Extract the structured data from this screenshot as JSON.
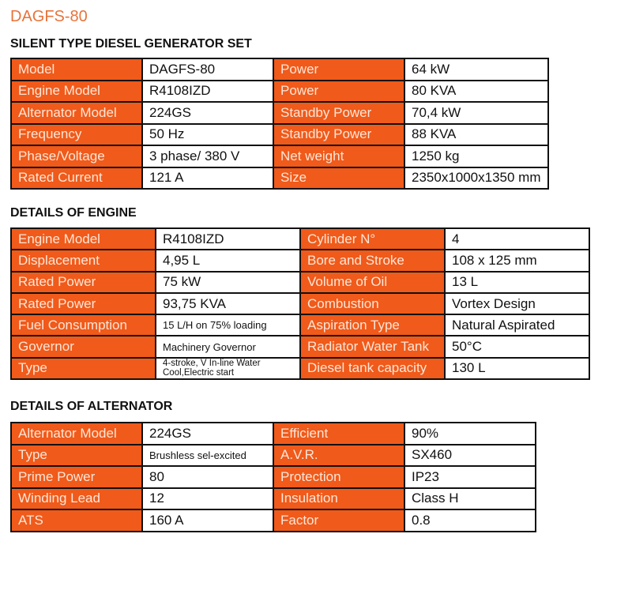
{
  "title": "DAGFS-80",
  "sections": [
    {
      "heading": "SILENT TYPE DIESEL GENERATOR SET",
      "rows": [
        [
          "Model",
          "DAGFS-80",
          "Power",
          "64 kW"
        ],
        [
          "Engine Model",
          "R4108IZD",
          "Power",
          "80 KVA"
        ],
        [
          "Alternator Model",
          "224GS",
          "Standby Power",
          "70,4 kW"
        ],
        [
          "Frequency",
          "50 Hz",
          "Standby Power",
          "88 KVA"
        ],
        [
          "Phase/Voltage",
          "3 phase/ 380 V",
          "Net weight",
          "1250 kg"
        ],
        [
          "Rated Current",
          "121 A",
          "Size",
          "2350x1000x1350 mm"
        ]
      ]
    },
    {
      "heading": "DETAILS OF ENGINE",
      "rows": [
        [
          "Engine Model",
          "R4108IZD",
          "Cylinder N°",
          "4"
        ],
        [
          "Displacement",
          "4,95 L",
          "Bore and Stroke",
          "108 x 125 mm"
        ],
        [
          "Rated Power",
          "75 kW",
          "Volume of Oil",
          "13 L"
        ],
        [
          "Rated Power",
          "93,75 KVA",
          "Combustion",
          "Vortex Design"
        ],
        [
          "Fuel Consumption",
          "15 L/H on 75% loading",
          "Aspiration Type",
          "Natural Aspirated"
        ],
        [
          "Governor",
          "Machinery Governor",
          "Radiator Water Tank",
          "50°C"
        ],
        [
          "Type",
          "4-stroke, V In-line Water Cool,Electric start",
          "Diesel tank capacity",
          "130 L"
        ]
      ]
    },
    {
      "heading": "DETAILS OF ALTERNATOR",
      "rows": [
        [
          "Alternator Model",
          "224GS",
          "Efficient",
          "90%"
        ],
        [
          "Type",
          "Brushless sel-excited",
          "A.V.R.",
          "SX460"
        ],
        [
          "Prime Power",
          "80",
          "Protection",
          "IP23"
        ],
        [
          "Winding Lead",
          "12",
          "Insulation",
          "Class H"
        ],
        [
          "ATS",
          "160 A",
          "Factor",
          "0.8"
        ]
      ]
    }
  ],
  "colors": {
    "header_cell": "#f05a1a",
    "title": "#e8733a"
  }
}
